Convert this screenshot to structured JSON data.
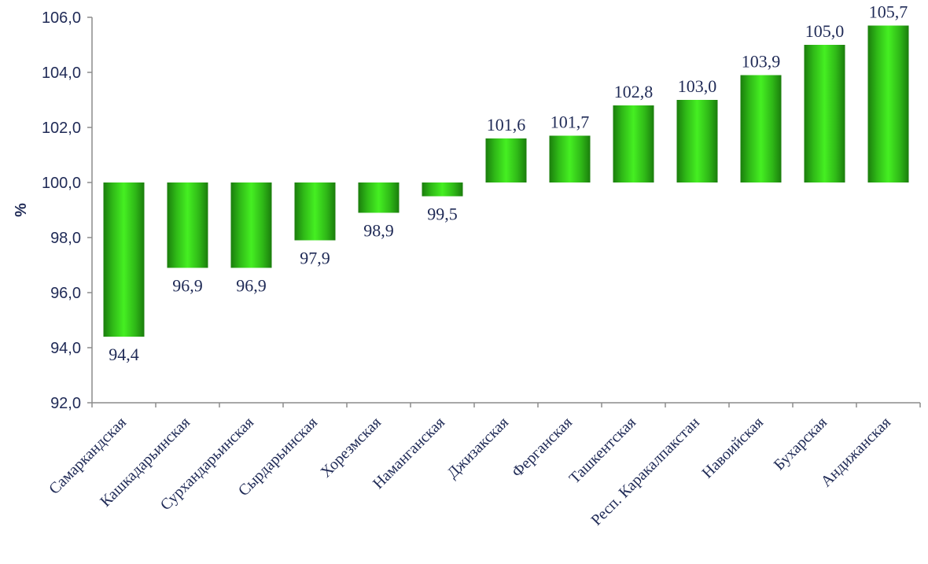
{
  "chart_data": {
    "type": "bar",
    "title": "",
    "xlabel": "",
    "ylabel": "%",
    "baseline": 100,
    "ylim": [
      92,
      106
    ],
    "yticks": [
      "92,0",
      "94,0",
      "96,0",
      "98,0",
      "100,0",
      "102,0",
      "104,0",
      "106,0"
    ],
    "categories": [
      "Самаркандская",
      "Кашкадарьинская",
      "Сурхандарьинская",
      "Сырдарьинская",
      "Хорезмская",
      "Наманганская",
      "Джизакская",
      "Ферганская",
      "Ташкентская",
      "Респ. Каракалпакстан",
      "Навоийская",
      "Бухарская",
      "Андижанская"
    ],
    "values": [
      94.4,
      96.9,
      96.9,
      97.9,
      98.9,
      99.5,
      101.6,
      101.7,
      102.8,
      103.0,
      103.9,
      105.0,
      105.7
    ],
    "value_labels": [
      "94,4",
      "96,9",
      "96,9",
      "97,9",
      "98,9",
      "99,5",
      "101,6",
      "101,7",
      "102,8",
      "103,0",
      "103,9",
      "105,0",
      "105,7"
    ],
    "grid": false,
    "legend": "none",
    "colors": {
      "bar_light": "#3fe61e",
      "bar_dark": "#1a7d0c",
      "text": "#1f2a56",
      "axis": "#8c8c8c"
    }
  }
}
